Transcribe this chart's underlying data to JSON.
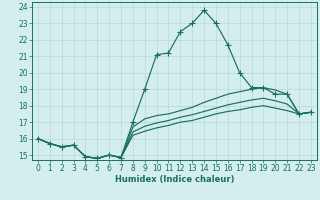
{
  "xlabel": "Humidex (Indice chaleur)",
  "bg_color": "#d4eeed",
  "grid_color": "#b8d8d5",
  "line_color": "#1a6e65",
  "xlim": [
    -0.5,
    23.5
  ],
  "ylim": [
    14.7,
    24.3
  ],
  "xticks": [
    0,
    1,
    2,
    3,
    4,
    5,
    6,
    7,
    8,
    9,
    10,
    11,
    12,
    13,
    14,
    15,
    16,
    17,
    18,
    19,
    20,
    21,
    22,
    23
  ],
  "yticks": [
    15,
    16,
    17,
    18,
    19,
    20,
    21,
    22,
    23,
    24
  ],
  "line1_x": [
    0,
    1,
    2,
    3,
    4,
    5,
    6,
    7,
    8,
    9,
    10,
    11,
    12,
    13,
    14,
    15,
    16,
    17,
    18,
    19,
    20,
    21,
    22,
    23
  ],
  "line1_y": [
    16.0,
    15.7,
    15.5,
    15.6,
    14.9,
    14.8,
    15.0,
    14.85,
    17.0,
    19.0,
    21.1,
    21.2,
    22.5,
    23.0,
    23.8,
    23.0,
    21.7,
    20.0,
    19.1,
    19.1,
    18.7,
    18.7,
    17.5,
    17.6
  ],
  "line2_x": [
    0,
    1,
    2,
    3,
    4,
    5,
    6,
    7,
    8,
    9,
    10,
    11,
    12,
    13,
    14,
    15,
    16,
    17,
    18,
    19,
    20,
    21,
    22,
    23
  ],
  "line2_y": [
    16.0,
    15.7,
    15.5,
    15.6,
    14.9,
    14.8,
    15.0,
    14.85,
    16.7,
    17.2,
    17.4,
    17.5,
    17.7,
    17.9,
    18.2,
    18.45,
    18.7,
    18.85,
    19.0,
    19.1,
    18.95,
    18.7,
    17.5,
    17.6
  ],
  "line3_x": [
    0,
    1,
    2,
    3,
    4,
    5,
    6,
    7,
    8,
    9,
    10,
    11,
    12,
    13,
    14,
    15,
    16,
    17,
    18,
    19,
    20,
    21,
    22,
    23
  ],
  "line3_y": [
    16.0,
    15.7,
    15.5,
    15.6,
    14.9,
    14.8,
    15.0,
    14.85,
    16.4,
    16.75,
    16.95,
    17.1,
    17.3,
    17.45,
    17.65,
    17.85,
    18.05,
    18.2,
    18.35,
    18.45,
    18.3,
    18.1,
    17.5,
    17.6
  ],
  "line4_x": [
    0,
    1,
    2,
    3,
    4,
    5,
    6,
    7,
    8,
    9,
    10,
    11,
    12,
    13,
    14,
    15,
    16,
    17,
    18,
    19,
    20,
    21,
    22,
    23
  ],
  "line4_y": [
    16.0,
    15.7,
    15.5,
    15.6,
    14.9,
    14.8,
    15.0,
    14.85,
    16.2,
    16.45,
    16.65,
    16.8,
    17.0,
    17.1,
    17.3,
    17.5,
    17.65,
    17.75,
    17.9,
    18.0,
    17.85,
    17.7,
    17.5,
    17.6
  ],
  "tick_fontsize": 5.5,
  "xlabel_fontsize": 6.0,
  "marker_size": 2.5,
  "line_width": 0.85
}
